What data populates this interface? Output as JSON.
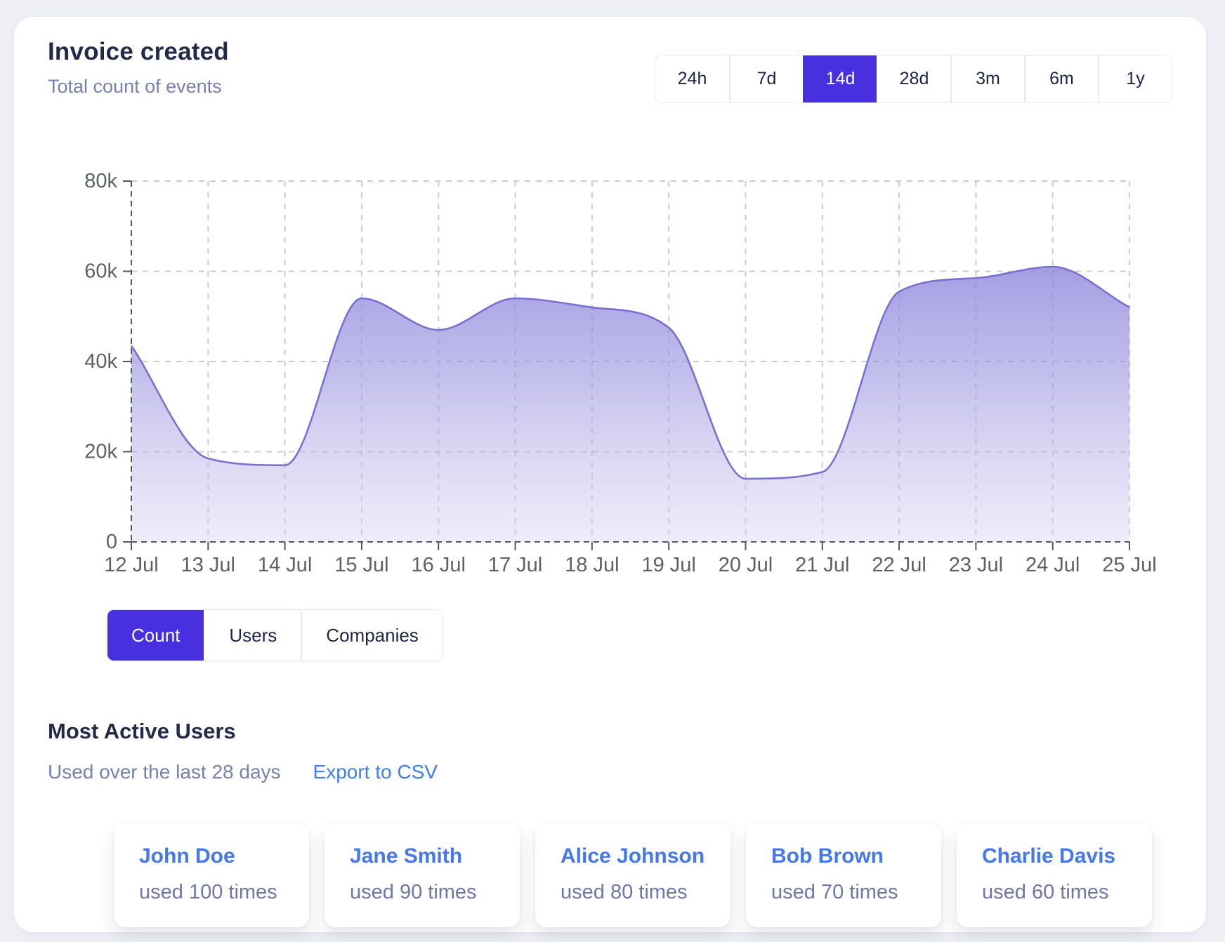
{
  "header": {
    "title": "Invoice created",
    "subtitle": "Total count of events"
  },
  "range_buttons": {
    "options": [
      "24h",
      "7d",
      "14d",
      "28d",
      "3m",
      "6m",
      "1y"
    ],
    "selected": "14d"
  },
  "chart_data": {
    "type": "area",
    "title": "Invoice created - total count of events",
    "x": [
      "12 Jul",
      "13 Jul",
      "14 Jul",
      "15 Jul",
      "16 Jul",
      "17 Jul",
      "18 Jul",
      "19 Jul",
      "20 Jul",
      "21 Jul",
      "22 Jul",
      "23 Jul",
      "24 Jul",
      "25 Jul"
    ],
    "series": [
      {
        "name": "Count",
        "values": [
          43500,
          18500,
          17000,
          54000,
          47000,
          54000,
          52000,
          47500,
          14000,
          15500,
          55500,
          58500,
          61000,
          52000
        ]
      }
    ],
    "ylim": [
      0,
      80000
    ],
    "yticks": [
      0,
      20000,
      40000,
      60000,
      80000
    ],
    "ytick_labels": [
      "0",
      "20k",
      "40k",
      "60k",
      "80k"
    ],
    "grid": "dashed",
    "legend": "none"
  },
  "series_tabs": {
    "options": [
      "Count",
      "Users",
      "Companies"
    ],
    "selected": "Count"
  },
  "most_active": {
    "title": "Most Active Users",
    "subtitle": "Used over the last 28 days",
    "export_label": "Export to CSV",
    "users": [
      {
        "name": "John Doe",
        "usage": "used 100 times"
      },
      {
        "name": "Jane Smith",
        "usage": "used 90 times"
      },
      {
        "name": "Alice Johnson",
        "usage": "used 80 times"
      },
      {
        "name": "Bob Brown",
        "usage": "used 70 times"
      },
      {
        "name": "Charlie Davis",
        "usage": "used 60 times"
      }
    ]
  },
  "colors": {
    "accent_purple": "#4830e0",
    "link_blue": "#3e7ef2",
    "user_name_blue": "#4478ec",
    "title_navy": "#232949",
    "muted_text": "#7681b2",
    "chart_line": "#7a70d0",
    "chart_fill_top": "#7e75d6",
    "chart_fill_bottom": "#d6d3f0",
    "grid_line": "#c9ccd6",
    "axis_line": "#545862",
    "axis_text": "#5c6068"
  }
}
